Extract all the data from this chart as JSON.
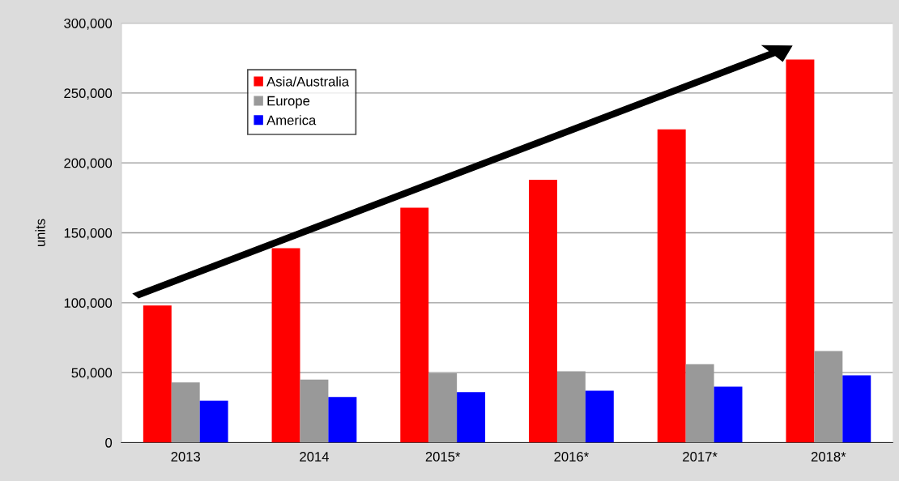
{
  "chart_data": {
    "type": "bar",
    "ylabel": "units",
    "categories": [
      "2013",
      "2014",
      "2015*",
      "2016*",
      "2017*",
      "2018*"
    ],
    "series": [
      {
        "name": "Asia/Australia",
        "color": "#ff0000",
        "values": [
          98000,
          139000,
          168000,
          188000,
          224000,
          274000
        ]
      },
      {
        "name": "Europe",
        "color": "#999999",
        "values": [
          43000,
          45000,
          49500,
          51000,
          56000,
          65500
        ]
      },
      {
        "name": "America",
        "color": "#0000ff",
        "values": [
          30000,
          32500,
          36000,
          37000,
          40000,
          48000
        ]
      }
    ],
    "ylim": [
      0,
      300000
    ],
    "yticks": [
      {
        "value": 0,
        "label": "0"
      },
      {
        "value": 50000,
        "label": "50,000"
      },
      {
        "value": 100000,
        "label": "100,000"
      },
      {
        "value": 150000,
        "label": "150,000"
      },
      {
        "value": 200000,
        "label": "200,000"
      },
      {
        "value": 250000,
        "label": "250,000"
      },
      {
        "value": 300000,
        "label": "300,000"
      }
    ],
    "grid": "y",
    "legend": "top left"
  }
}
